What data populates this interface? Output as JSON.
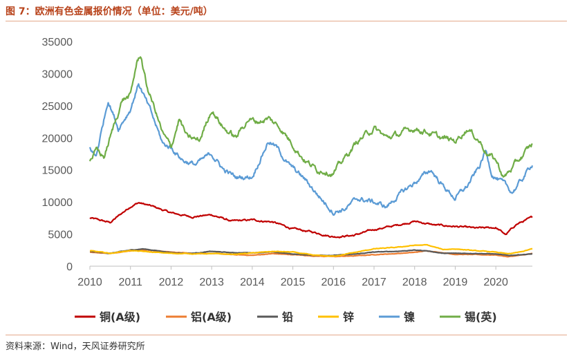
{
  "header": {
    "title": "图 7：欧洲有色金属报价情况（单位：美元/吨）"
  },
  "footer": {
    "source": "资料来源：Wind，天风证券研究所"
  },
  "chart_data": {
    "type": "line",
    "title": "图 7：欧洲有色金属报价情况（单位：美元/吨）",
    "xlabel": "",
    "ylabel": "",
    "xlim": [
      2010.0,
      2020.9
    ],
    "ylim": [
      0,
      35000
    ],
    "yticks": [
      0,
      5000,
      10000,
      15000,
      20000,
      25000,
      30000,
      35000
    ],
    "xticks": [
      "2010",
      "2011",
      "2012",
      "2013",
      "2014",
      "2015",
      "2016",
      "2017",
      "2018",
      "2019",
      "2020"
    ],
    "grid": false,
    "legend_position": "bottom",
    "series": [
      {
        "name": "铜(A级)",
        "color": "#c00000",
        "x": [
          2010.0,
          2010.5,
          2011.0,
          2011.2,
          2011.6,
          2012.0,
          2012.5,
          2013.0,
          2013.5,
          2014.0,
          2014.5,
          2015.0,
          2015.5,
          2016.0,
          2016.5,
          2017.0,
          2017.5,
          2018.0,
          2018.5,
          2019.0,
          2019.5,
          2020.0,
          2020.25,
          2020.5,
          2020.9
        ],
        "values": [
          7500,
          6800,
          9300,
          9900,
          9200,
          8300,
          7700,
          8000,
          7000,
          7200,
          6900,
          5800,
          5300,
          4600,
          4800,
          5700,
          6300,
          7000,
          6400,
          6200,
          5900,
          6000,
          4900,
          6500,
          7600
        ]
      },
      {
        "name": "铝(A级)",
        "color": "#ed7d31",
        "x": [
          2010.0,
          2010.5,
          2011.0,
          2011.3,
          2012.0,
          2012.5,
          2013.0,
          2013.5,
          2014.0,
          2014.5,
          2015.0,
          2015.5,
          2016.0,
          2016.5,
          2017.0,
          2017.5,
          2018.0,
          2018.3,
          2018.7,
          2019.0,
          2019.5,
          2020.0,
          2020.3,
          2020.6,
          2020.9
        ],
        "values": [
          2200,
          2000,
          2400,
          2600,
          2200,
          2000,
          2000,
          1800,
          1700,
          1950,
          1800,
          1600,
          1500,
          1600,
          1800,
          1950,
          2150,
          2400,
          2100,
          1850,
          1800,
          1750,
          1480,
          1700,
          1950
        ]
      },
      {
        "name": "铅",
        "color": "#595959",
        "x": [
          2010.0,
          2010.5,
          2011.0,
          2011.3,
          2011.8,
          2012.0,
          2012.5,
          2013.0,
          2013.5,
          2014.0,
          2014.5,
          2015.0,
          2015.5,
          2016.0,
          2016.5,
          2017.0,
          2017.5,
          2018.0,
          2018.3,
          2018.7,
          2019.0,
          2019.5,
          2020.0,
          2020.3,
          2020.6,
          2020.9
        ],
        "values": [
          2300,
          2000,
          2500,
          2700,
          2300,
          2100,
          2000,
          2300,
          2100,
          2100,
          2200,
          1900,
          1700,
          1700,
          1850,
          2200,
          2300,
          2500,
          2400,
          2000,
          2000,
          2000,
          1900,
          1650,
          1800,
          1900
        ]
      },
      {
        "name": "锌",
        "color": "#ffc000",
        "x": [
          2010.0,
          2010.5,
          2011.0,
          2011.5,
          2012.0,
          2012.5,
          2013.0,
          2013.5,
          2014.0,
          2014.5,
          2015.0,
          2015.5,
          2016.0,
          2016.5,
          2017.0,
          2017.5,
          2018.0,
          2018.3,
          2018.7,
          2019.0,
          2019.5,
          2020.0,
          2020.3,
          2020.6,
          2020.9
        ],
        "values": [
          2400,
          2000,
          2450,
          2200,
          2000,
          1950,
          1950,
          1850,
          2050,
          2300,
          2200,
          1700,
          1550,
          2100,
          2700,
          2900,
          3250,
          3300,
          2600,
          2700,
          2400,
          2200,
          1900,
          2200,
          2700
        ]
      },
      {
        "name": "镍",
        "color": "#5b9bd5",
        "x": [
          2010.0,
          2010.15,
          2010.3,
          2010.45,
          2010.7,
          2011.0,
          2011.2,
          2011.5,
          2011.8,
          2012.0,
          2012.3,
          2012.6,
          2013.0,
          2013.3,
          2013.6,
          2014.0,
          2014.25,
          2014.4,
          2014.6,
          2014.9,
          2015.3,
          2015.7,
          2016.0,
          2016.3,
          2016.6,
          2017.0,
          2017.3,
          2017.6,
          2018.0,
          2018.4,
          2018.7,
          2019.0,
          2019.3,
          2019.6,
          2019.75,
          2019.9,
          2020.15,
          2020.4,
          2020.65,
          2020.9
        ],
        "values": [
          18500,
          17000,
          21500,
          26000,
          21500,
          24500,
          28500,
          24000,
          19000,
          18500,
          16500,
          15800,
          17500,
          15000,
          13800,
          14000,
          17500,
          19500,
          18500,
          15800,
          13500,
          10500,
          8500,
          9000,
          10500,
          10000,
          9200,
          11000,
          13000,
          15000,
          12500,
          10600,
          12500,
          15500,
          18000,
          14500,
          13000,
          11500,
          13500,
          16000
        ]
      },
      {
        "name": "锡(英)",
        "color": "#70ad47",
        "x": [
          2010.0,
          2010.15,
          2010.35,
          2010.6,
          2010.8,
          2011.0,
          2011.15,
          2011.25,
          2011.4,
          2011.6,
          2011.8,
          2012.0,
          2012.2,
          2012.4,
          2012.7,
          2013.0,
          2013.3,
          2013.6,
          2013.9,
          2014.1,
          2014.4,
          2014.7,
          2015.0,
          2015.3,
          2015.6,
          2015.8,
          2016.0,
          2016.3,
          2016.6,
          2017.0,
          2017.3,
          2017.6,
          2018.0,
          2018.3,
          2018.6,
          2019.0,
          2019.3,
          2019.6,
          2019.8,
          2020.0,
          2020.2,
          2020.5,
          2020.7,
          2020.9
        ],
        "values": [
          16500,
          18000,
          17000,
          22000,
          26000,
          26500,
          31500,
          33000,
          28000,
          24500,
          20500,
          18500,
          23000,
          20000,
          19500,
          24500,
          21500,
          20000,
          23000,
          22500,
          23000,
          21500,
          19000,
          16500,
          15000,
          15000,
          14500,
          17000,
          19500,
          21500,
          20000,
          20500,
          21500,
          21000,
          20000,
          19500,
          21500,
          19500,
          17500,
          16500,
          13800,
          16000,
          17500,
          19000
        ]
      }
    ]
  }
}
